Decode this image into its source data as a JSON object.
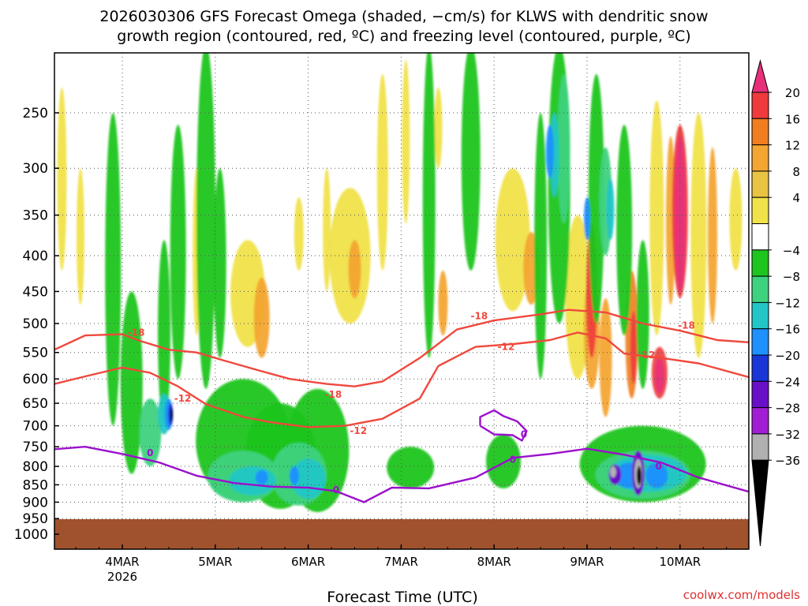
{
  "chart_data": {
    "type": "heatmap",
    "title_line1": "2026030306 GFS Forecast Omega (shaded, −cm/s) for KLWS with dendritic snow",
    "title_line2": "growth region (contoured, red, ºC) and freezing level (contoured, purple, ºC)",
    "xlabel": "Forecast Time (UTC)",
    "ylabel": "",
    "credit": "coolwx.com/models",
    "y_axis_reversed": true,
    "y_ticks": [
      "250",
      "300",
      "350",
      "400",
      "450",
      "500",
      "550",
      "600",
      "650",
      "700",
      "750",
      "800",
      "850",
      "900",
      "950",
      "1000"
    ],
    "x_ticks": [
      {
        "label": "4MAR",
        "sub": "2026",
        "day": 1
      },
      {
        "label": "5MAR",
        "sub": "",
        "day": 2
      },
      {
        "label": "6MAR",
        "sub": "",
        "day": 3
      },
      {
        "label": "7MAR",
        "sub": "",
        "day": 4
      },
      {
        "label": "8MAR",
        "sub": "",
        "day": 5
      },
      {
        "label": "9MAR",
        "sub": "",
        "day": 6
      },
      {
        "label": "10MAR",
        "sub": "",
        "day": 7
      }
    ],
    "x_range_days": [
      0.27,
      7.75
    ],
    "y_range_hpa": [
      200,
      1020
    ],
    "colorbar": {
      "labels": [
        "20",
        "16",
        "12",
        "8",
        "4",
        "−4",
        "−8",
        "−12",
        "−16",
        "−20",
        "−24",
        "−28",
        "−32",
        "−36"
      ],
      "colors": [
        "#e8307a",
        "#ef3b3b",
        "#f07d20",
        "#f3a532",
        "#e9c443",
        "#f0e24a",
        "#ffffff",
        "#1ec51e",
        "#3fd27e",
        "#22c6c6",
        "#1e90ff",
        "#1a36d6",
        "#6a0fc8",
        "#a11ed4",
        "#b0b0b0",
        "#000000"
      ]
    },
    "contours": [
      {
        "name": "dgz-18c",
        "label": "-18",
        "color": "#f0483d",
        "points": [
          [
            0.27,
            545
          ],
          [
            0.6,
            520
          ],
          [
            1.0,
            518
          ],
          [
            1.2,
            530
          ],
          [
            1.5,
            545
          ],
          [
            1.8,
            550
          ],
          [
            2.1,
            565
          ],
          [
            2.5,
            585
          ],
          [
            2.8,
            600
          ],
          [
            3.2,
            610
          ],
          [
            3.5,
            615
          ],
          [
            3.8,
            605
          ],
          [
            4.2,
            560
          ],
          [
            4.6,
            510
          ],
          [
            5.0,
            495
          ],
          [
            5.5,
            485
          ],
          [
            5.8,
            478
          ],
          [
            6.2,
            482
          ],
          [
            6.6,
            500
          ],
          [
            7.0,
            512
          ],
          [
            7.4,
            528
          ],
          [
            7.75,
            532
          ]
        ],
        "labels_at": [
          [
            1.15,
            515
          ],
          [
            3.27,
            632
          ],
          [
            4.84,
            488
          ],
          [
            7.07,
            503
          ]
        ]
      },
      {
        "name": "dgz-12c",
        "label": "-12",
        "color": "#f0483d",
        "points": [
          [
            0.27,
            610
          ],
          [
            0.6,
            595
          ],
          [
            1.0,
            578
          ],
          [
            1.3,
            588
          ],
          [
            1.6,
            615
          ],
          [
            1.9,
            652
          ],
          [
            2.3,
            680
          ],
          [
            2.6,
            692
          ],
          [
            3.0,
            703
          ],
          [
            3.4,
            700
          ],
          [
            3.8,
            684
          ],
          [
            4.2,
            640
          ],
          [
            4.4,
            575
          ],
          [
            4.8,
            540
          ],
          [
            5.2,
            535
          ],
          [
            5.6,
            528
          ],
          [
            5.9,
            515
          ],
          [
            6.2,
            525
          ],
          [
            6.4,
            552
          ],
          [
            6.8,
            560
          ],
          [
            7.2,
            570
          ],
          [
            7.75,
            597
          ]
        ],
        "labels_at": [
          [
            1.65,
            640
          ],
          [
            3.54,
            712
          ],
          [
            5.13,
            540
          ],
          [
            6.64,
            555
          ]
        ]
      },
      {
        "name": "freezing-level",
        "label": "0",
        "color": "#9a10cc",
        "points": [
          [
            0.27,
            756
          ],
          [
            0.6,
            750
          ],
          [
            1.0,
            768
          ],
          [
            1.4,
            790
          ],
          [
            1.8,
            825
          ],
          [
            2.2,
            845
          ],
          [
            2.6,
            855
          ],
          [
            3.0,
            858
          ],
          [
            3.3,
            868
          ],
          [
            3.6,
            900
          ],
          [
            3.9,
            858
          ],
          [
            4.3,
            860
          ],
          [
            4.8,
            830
          ],
          [
            5.2,
            778
          ],
          [
            5.6,
            768
          ],
          [
            6.0,
            755
          ],
          [
            6.4,
            770
          ],
          [
            6.8,
            790
          ],
          [
            7.2,
            830
          ],
          [
            7.75,
            870
          ]
        ],
        "labels_at": [
          [
            1.3,
            765
          ],
          [
            3.3,
            865
          ],
          [
            5.2,
            782
          ],
          [
            6.77,
            800
          ]
        ]
      },
      {
        "name": "freezing-level-loop",
        "label": "0",
        "color": "#9a10cc",
        "points": [
          [
            4.85,
            700
          ],
          [
            4.85,
            680
          ],
          [
            5.0,
            665
          ],
          [
            5.1,
            678
          ],
          [
            5.25,
            690
          ],
          [
            5.35,
            712
          ],
          [
            5.3,
            735
          ],
          [
            5.2,
            722
          ],
          [
            5.0,
            720
          ],
          [
            4.85,
            700
          ]
        ],
        "labels_at": [
          [
            5.32,
            720
          ]
        ]
      }
    ]
  }
}
